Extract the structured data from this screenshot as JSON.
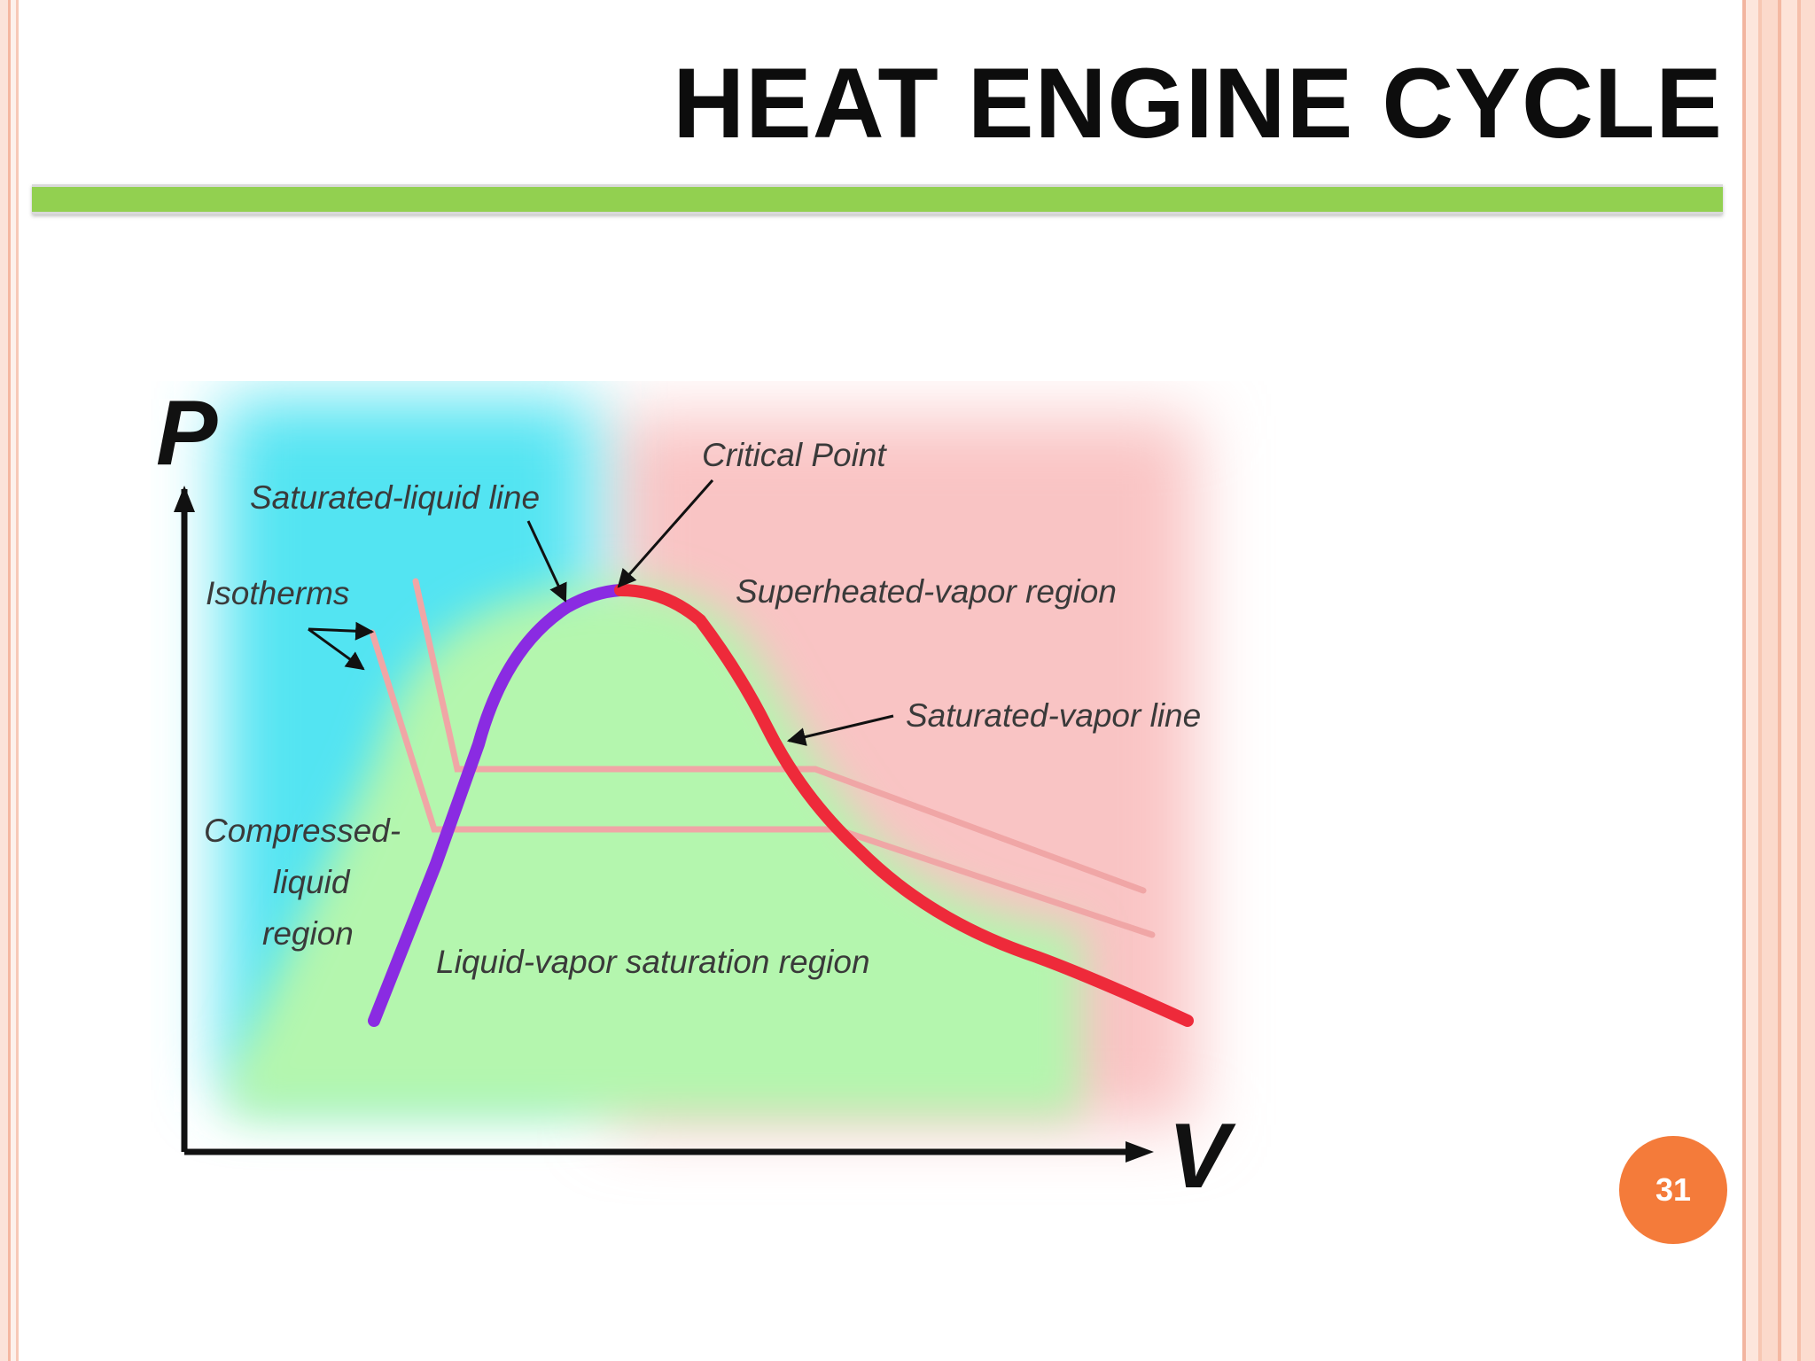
{
  "slide": {
    "title": "HEAT ENGINE CYCLE",
    "page_number": "31",
    "accent_bar_color": "#92d050",
    "badge_color": "#f47b3a"
  },
  "diagram": {
    "axis_y_label": "P",
    "axis_x_label": "V",
    "labels": {
      "critical_point": "Critical Point",
      "saturated_liquid_line": "Saturated-liquid line",
      "isotherms": "Isotherms",
      "superheated_vapor_region": "Superheated-vapor region",
      "saturated_vapor_line": "Saturated-vapor line",
      "compressed_liquid_1": "Compressed-",
      "compressed_liquid_2": "liquid",
      "compressed_liquid_3": "region",
      "liquid_vapor_region": "Liquid-vapor saturation region"
    },
    "colors": {
      "saturated_liquid_line": "#8a2be2",
      "saturated_vapor_line": "#ee2a3a",
      "isotherm": "#f0a6a6",
      "compressed_liquid_region": "#5ee6f0",
      "liquid_vapor_region": "#b8f5b0",
      "superheated_region": "#f9c6c6"
    }
  }
}
